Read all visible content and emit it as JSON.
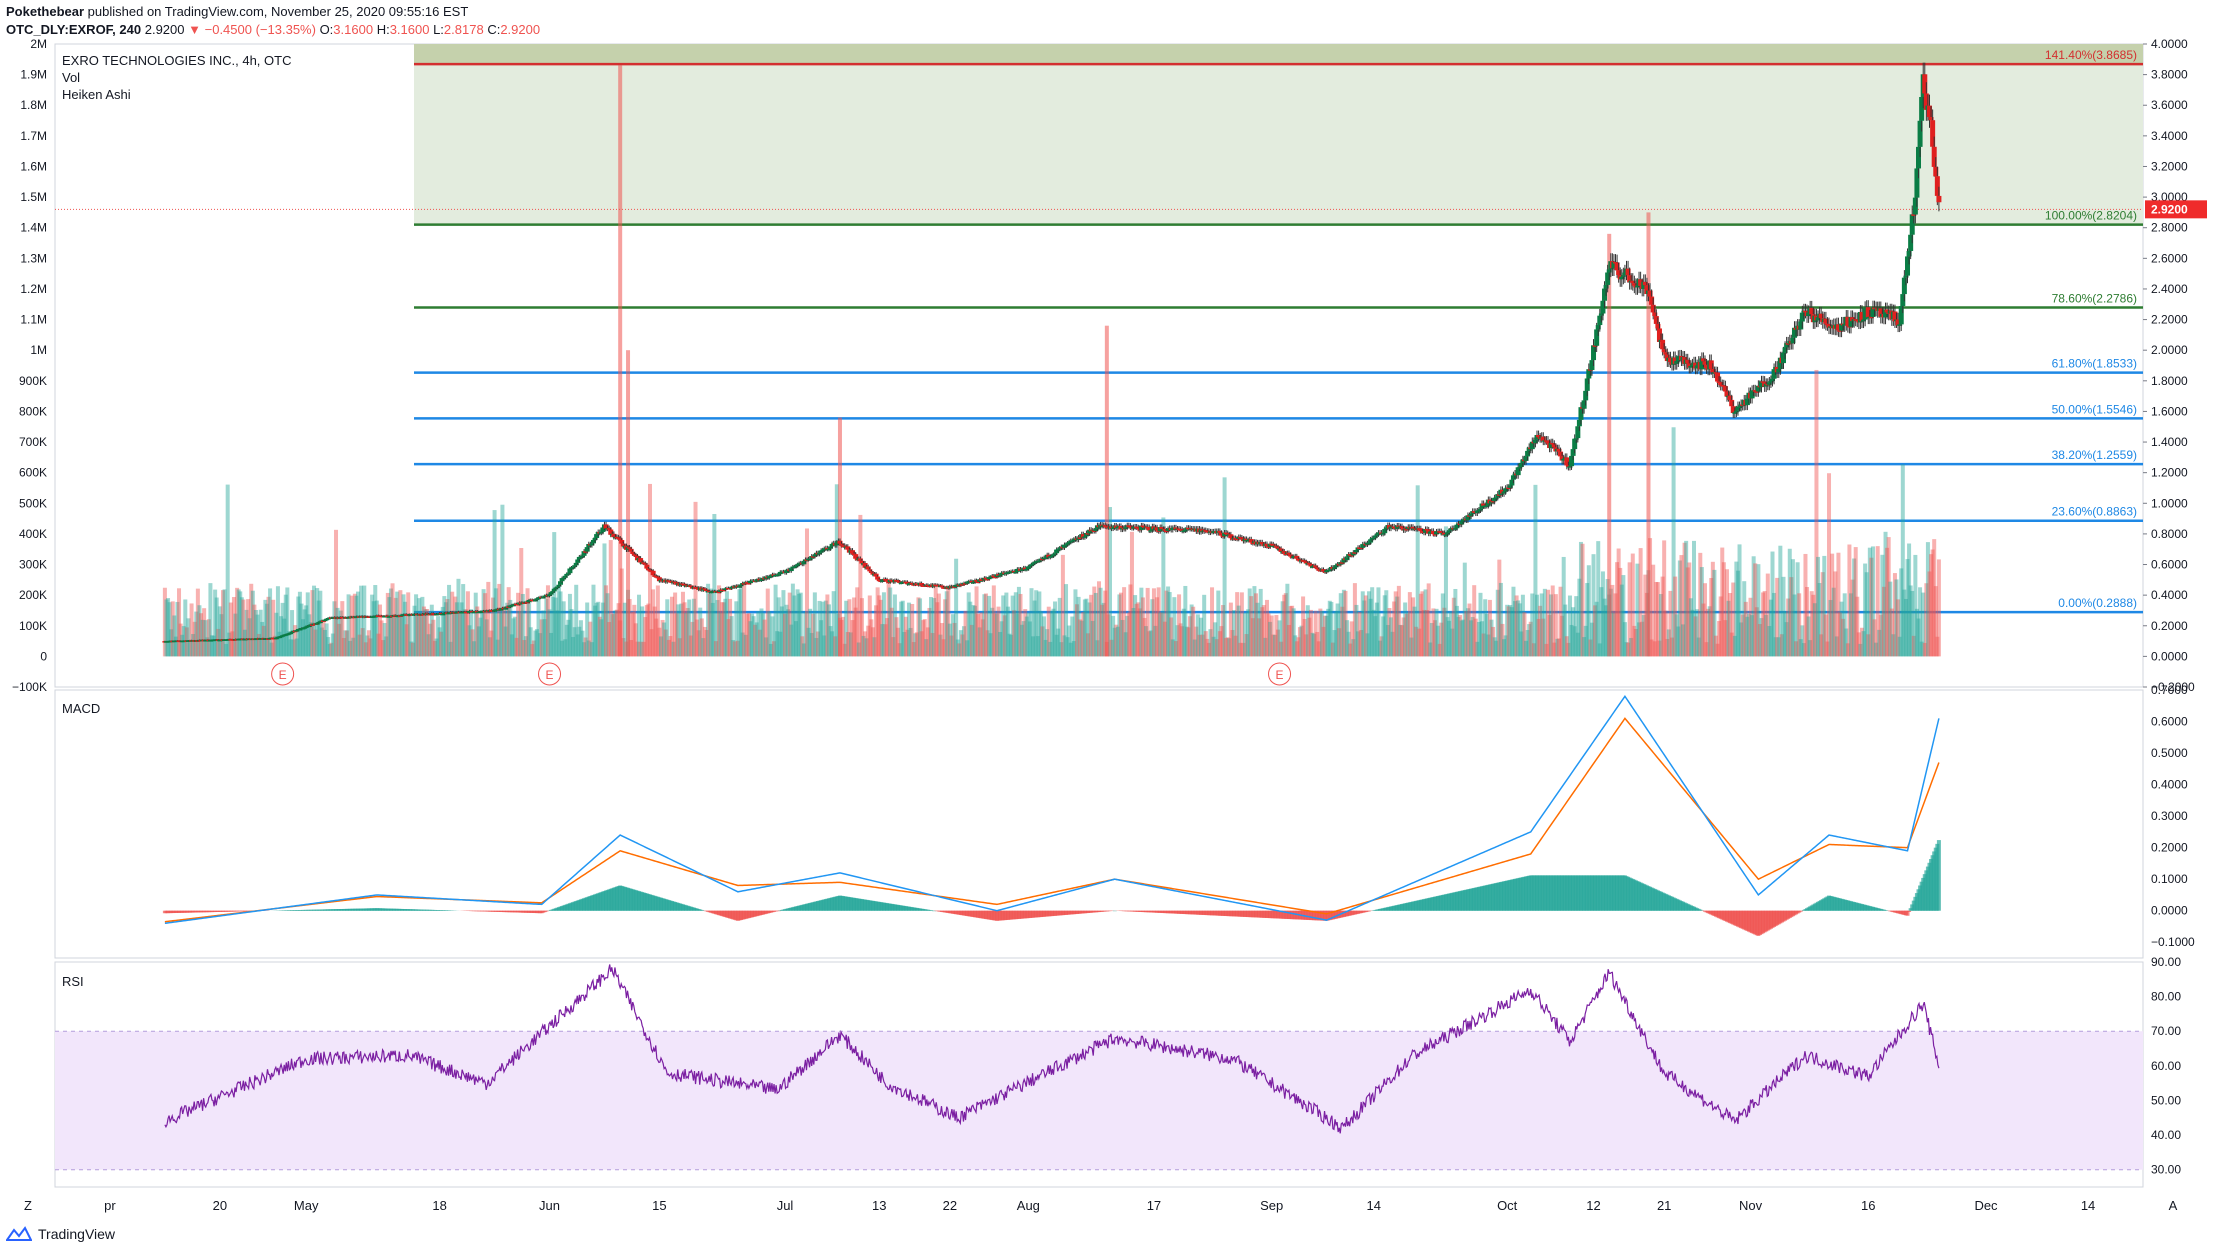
{
  "header": {
    "author": "Pokethebear",
    "published_text": "published on TradingView.com, November 25, 2020 09:55:16 EST",
    "symbol": "OTC_DLY:EXROF, 240",
    "last": "2.9200",
    "change": "−0.4500 (−13.35%)",
    "o_label": "O:",
    "o": "3.1600",
    "h_label": "H:",
    "h": "3.1600",
    "l_label": "L:",
    "l": "2.8178",
    "c_label": "C:",
    "c": "2.9200"
  },
  "legend": {
    "title": "EXRO TECHNOLOGIES INC., 4h, OTC",
    "vol": "Vol",
    "style": "Heiken Ashi"
  },
  "price_axis_labels": [
    "4.0000",
    "3.8000",
    "3.6000",
    "3.4000",
    "3.2000",
    "3.0000",
    "2.8000",
    "2.6000",
    "2.4000",
    "2.2000",
    "2.0000",
    "1.8000",
    "1.6000",
    "1.4000",
    "1.2000",
    "1.0000",
    "0.8000",
    "0.6000",
    "0.4000",
    "0.2000",
    "0.0000",
    "−0.2000"
  ],
  "volume_axis_labels": [
    "2M",
    "1.9M",
    "1.8M",
    "1.7M",
    "1.6M",
    "1.5M",
    "1.4M",
    "1.3M",
    "1.2M",
    "1.1M",
    "1M",
    "900K",
    "800K",
    "700K",
    "600K",
    "500K",
    "400K",
    "300K",
    "200K",
    "100K",
    "0",
    "−100K"
  ],
  "last_price_tag": "2.9200",
  "fib_levels": [
    {
      "label": "141.40%(3.8685)",
      "price": 3.8685,
      "color": "#d32f2f"
    },
    {
      "label": "100.00%(2.8204)",
      "price": 2.8204,
      "color": "#2e7d32"
    },
    {
      "label": "78.60%(2.2786)",
      "price": 2.2786,
      "color": "#2e7d32"
    },
    {
      "label": "61.80%(1.8533)",
      "price": 1.8533,
      "color": "#1e88e5"
    },
    {
      "label": "50.00%(1.5546)",
      "price": 1.5546,
      "color": "#1e88e5"
    },
    {
      "label": "38.20%(1.2559)",
      "price": 1.2559,
      "color": "#1e88e5"
    },
    {
      "label": "23.60%(0.8863)",
      "price": 0.8863,
      "color": "#1e88e5"
    },
    {
      "label": "0.00%(0.2888)",
      "price": 0.2888,
      "color": "#1e88e5"
    }
  ],
  "earnings_marker": "E",
  "macd": {
    "label": "MACD",
    "axis_labels": [
      "0.7000",
      "0.6000",
      "0.5000",
      "0.4000",
      "0.3000",
      "0.2000",
      "0.1000",
      "0.0000",
      "−0.1000"
    ]
  },
  "rsi": {
    "label": "RSI",
    "axis_labels": [
      "90.00",
      "80.00",
      "70.00",
      "60.00",
      "50.00",
      "40.00",
      "30.00"
    ]
  },
  "time_axis_labels": [
    "pr",
    "20",
    "May",
    "18",
    "Jun",
    "15",
    "Jul",
    "13",
    "22",
    "Aug",
    "17",
    "Sep",
    "14",
    "Oct",
    "12",
    "21",
    "Nov",
    "16",
    "Dec",
    "14"
  ],
  "corner_labels": {
    "left": "Z",
    "right": "A"
  },
  "footer_brand": "TradingView",
  "colors": {
    "up": "#26a69a",
    "down": "#ef5350",
    "macd": "#2196f3",
    "signal": "#ff6d00",
    "rsi": "#7b1fa2"
  },
  "chart_data": {
    "type": "candlestick",
    "title": "EXRO TECHNOLOGIES INC., 4h, OTC",
    "price_range": [
      -0.2,
      4.0
    ],
    "volume_range": [
      -100000,
      2000000
    ],
    "price_path": [
      {
        "date": "2020-04-13",
        "price": 0.1
      },
      {
        "date": "2020-04-27",
        "price": 0.12
      },
      {
        "date": "2020-05-04",
        "price": 0.25
      },
      {
        "date": "2020-05-18",
        "price": 0.28
      },
      {
        "date": "2020-05-25",
        "price": 0.3
      },
      {
        "date": "2020-06-01",
        "price": 0.4
      },
      {
        "date": "2020-06-08",
        "price": 0.85
      },
      {
        "date": "2020-06-15",
        "price": 0.5
      },
      {
        "date": "2020-06-22",
        "price": 0.42
      },
      {
        "date": "2020-07-01",
        "price": 0.55
      },
      {
        "date": "2020-07-08",
        "price": 0.75
      },
      {
        "date": "2020-07-13",
        "price": 0.5
      },
      {
        "date": "2020-07-22",
        "price": 0.45
      },
      {
        "date": "2020-08-01",
        "price": 0.58
      },
      {
        "date": "2020-08-10",
        "price": 0.85
      },
      {
        "date": "2020-08-24",
        "price": 0.82
      },
      {
        "date": "2020-09-01",
        "price": 0.72
      },
      {
        "date": "2020-09-08",
        "price": 0.55
      },
      {
        "date": "2020-09-16",
        "price": 0.85
      },
      {
        "date": "2020-09-23",
        "price": 0.8
      },
      {
        "date": "2020-10-01",
        "price": 1.1
      },
      {
        "date": "2020-10-05",
        "price": 1.45
      },
      {
        "date": "2020-10-09",
        "price": 1.25
      },
      {
        "date": "2020-10-12",
        "price": 2.0
      },
      {
        "date": "2020-10-14",
        "price": 2.55
      },
      {
        "date": "2020-10-19",
        "price": 2.4
      },
      {
        "date": "2020-10-21",
        "price": 1.95
      },
      {
        "date": "2020-10-27",
        "price": 1.9
      },
      {
        "date": "2020-10-30",
        "price": 1.6
      },
      {
        "date": "2020-11-04",
        "price": 1.85
      },
      {
        "date": "2020-11-08",
        "price": 2.25
      },
      {
        "date": "2020-11-12",
        "price": 2.15
      },
      {
        "date": "2020-11-16",
        "price": 2.25
      },
      {
        "date": "2020-11-20",
        "price": 2.2
      },
      {
        "date": "2020-11-22",
        "price": 3.0
      },
      {
        "date": "2020-11-23",
        "price": 3.75
      },
      {
        "date": "2020-11-24",
        "price": 3.45
      },
      {
        "date": "2020-11-25",
        "price": 2.92
      }
    ],
    "volume_spikes": [
      {
        "date": "2020-06-10",
        "volume": 1930000
      },
      {
        "date": "2020-06-11",
        "volume": 1000000
      },
      {
        "date": "2020-07-08",
        "volume": 780000
      },
      {
        "date": "2020-08-11",
        "volume": 1080000
      },
      {
        "date": "2020-10-14",
        "volume": 1380000
      },
      {
        "date": "2020-10-19",
        "volume": 1450000
      }
    ],
    "fib_levels": [
      3.8685,
      2.8204,
      2.2786,
      1.8533,
      1.5546,
      1.2559,
      0.8863,
      0.2888
    ],
    "macd_range": [
      -0.15,
      0.7
    ],
    "macd_path": [
      {
        "date": "2020-04-13",
        "macd": -0.04,
        "signal": -0.035
      },
      {
        "date": "2020-05-10",
        "macd": 0.05,
        "signal": 0.045
      },
      {
        "date": "2020-05-31",
        "macd": 0.02,
        "signal": 0.025
      },
      {
        "date": "2020-06-10",
        "macd": 0.24,
        "signal": 0.19
      },
      {
        "date": "2020-06-25",
        "macd": 0.06,
        "signal": 0.08
      },
      {
        "date": "2020-07-08",
        "macd": 0.12,
        "signal": 0.09
      },
      {
        "date": "2020-07-28",
        "macd": 0.0,
        "signal": 0.02
      },
      {
        "date": "2020-08-12",
        "macd": 0.1,
        "signal": 0.1
      },
      {
        "date": "2020-09-08",
        "macd": -0.03,
        "signal": -0.01
      },
      {
        "date": "2020-10-04",
        "macd": 0.25,
        "signal": 0.18
      },
      {
        "date": "2020-10-16",
        "macd": 0.68,
        "signal": 0.61
      },
      {
        "date": "2020-11-02",
        "macd": 0.05,
        "signal": 0.1
      },
      {
        "date": "2020-11-11",
        "macd": 0.24,
        "signal": 0.21
      },
      {
        "date": "2020-11-21",
        "macd": 0.19,
        "signal": 0.2
      },
      {
        "date": "2020-11-25",
        "macd": 0.61,
        "signal": 0.47
      }
    ],
    "rsi_range": [
      25,
      90
    ],
    "rsi_path": [
      {
        "date": "2020-04-13",
        "rsi": 44
      },
      {
        "date": "2020-05-01",
        "rsi": 62
      },
      {
        "date": "2020-05-14",
        "rsi": 63
      },
      {
        "date": "2020-05-24",
        "rsi": 55
      },
      {
        "date": "2020-06-09",
        "rsi": 88
      },
      {
        "date": "2020-06-16",
        "rsi": 58
      },
      {
        "date": "2020-06-30",
        "rsi": 53
      },
      {
        "date": "2020-07-08",
        "rsi": 69
      },
      {
        "date": "2020-07-14",
        "rsi": 55
      },
      {
        "date": "2020-07-23",
        "rsi": 45
      },
      {
        "date": "2020-08-12",
        "rsi": 68
      },
      {
        "date": "2020-08-27",
        "rsi": 62
      },
      {
        "date": "2020-09-10",
        "rsi": 42
      },
      {
        "date": "2020-09-19",
        "rsi": 63
      },
      {
        "date": "2020-10-04",
        "rsi": 82
      },
      {
        "date": "2020-10-09",
        "rsi": 67
      },
      {
        "date": "2020-10-14",
        "rsi": 87
      },
      {
        "date": "2020-10-21",
        "rsi": 58
      },
      {
        "date": "2020-10-30",
        "rsi": 44
      },
      {
        "date": "2020-11-08",
        "rsi": 63
      },
      {
        "date": "2020-11-16",
        "rsi": 57
      },
      {
        "date": "2020-11-23",
        "rsi": 78
      },
      {
        "date": "2020-11-25",
        "rsi": 60
      }
    ],
    "rsi_bands": [
      70,
      30
    ]
  }
}
